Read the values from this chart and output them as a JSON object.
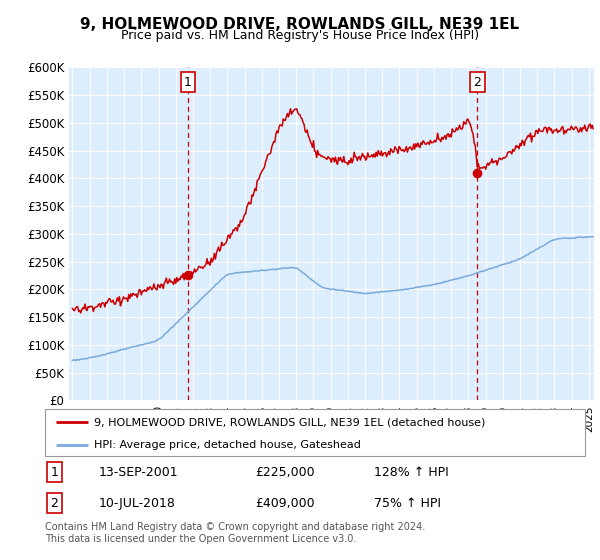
{
  "title": "9, HOLMEWOOD DRIVE, ROWLANDS GILL, NE39 1EL",
  "subtitle": "Price paid vs. HM Land Registry's House Price Index (HPI)",
  "legend_line1": "9, HOLMEWOOD DRIVE, ROWLANDS GILL, NE39 1EL (detached house)",
  "legend_line2": "HPI: Average price, detached house, Gateshead",
  "sale1_label": "1",
  "sale1_date": "13-SEP-2001",
  "sale1_price": "£225,000",
  "sale1_hpi": "128% ↑ HPI",
  "sale2_label": "2",
  "sale2_date": "10-JUL-2018",
  "sale2_price": "£409,000",
  "sale2_hpi": "75% ↑ HPI",
  "footer": "Contains HM Land Registry data © Crown copyright and database right 2024.\nThis data is licensed under the Open Government Licence v3.0.",
  "hpi_color": "#7aaadd",
  "price_color": "#cc0000",
  "dashed_line_color": "#cc0000",
  "bg_color": "#ddeeff",
  "sale1_x": 2001.71,
  "sale1_y": 225000,
  "sale2_x": 2018.53,
  "sale2_y": 409000,
  "ylim": [
    0,
    600000
  ],
  "xlim_start": 1994.8,
  "xlim_end": 2025.3
}
